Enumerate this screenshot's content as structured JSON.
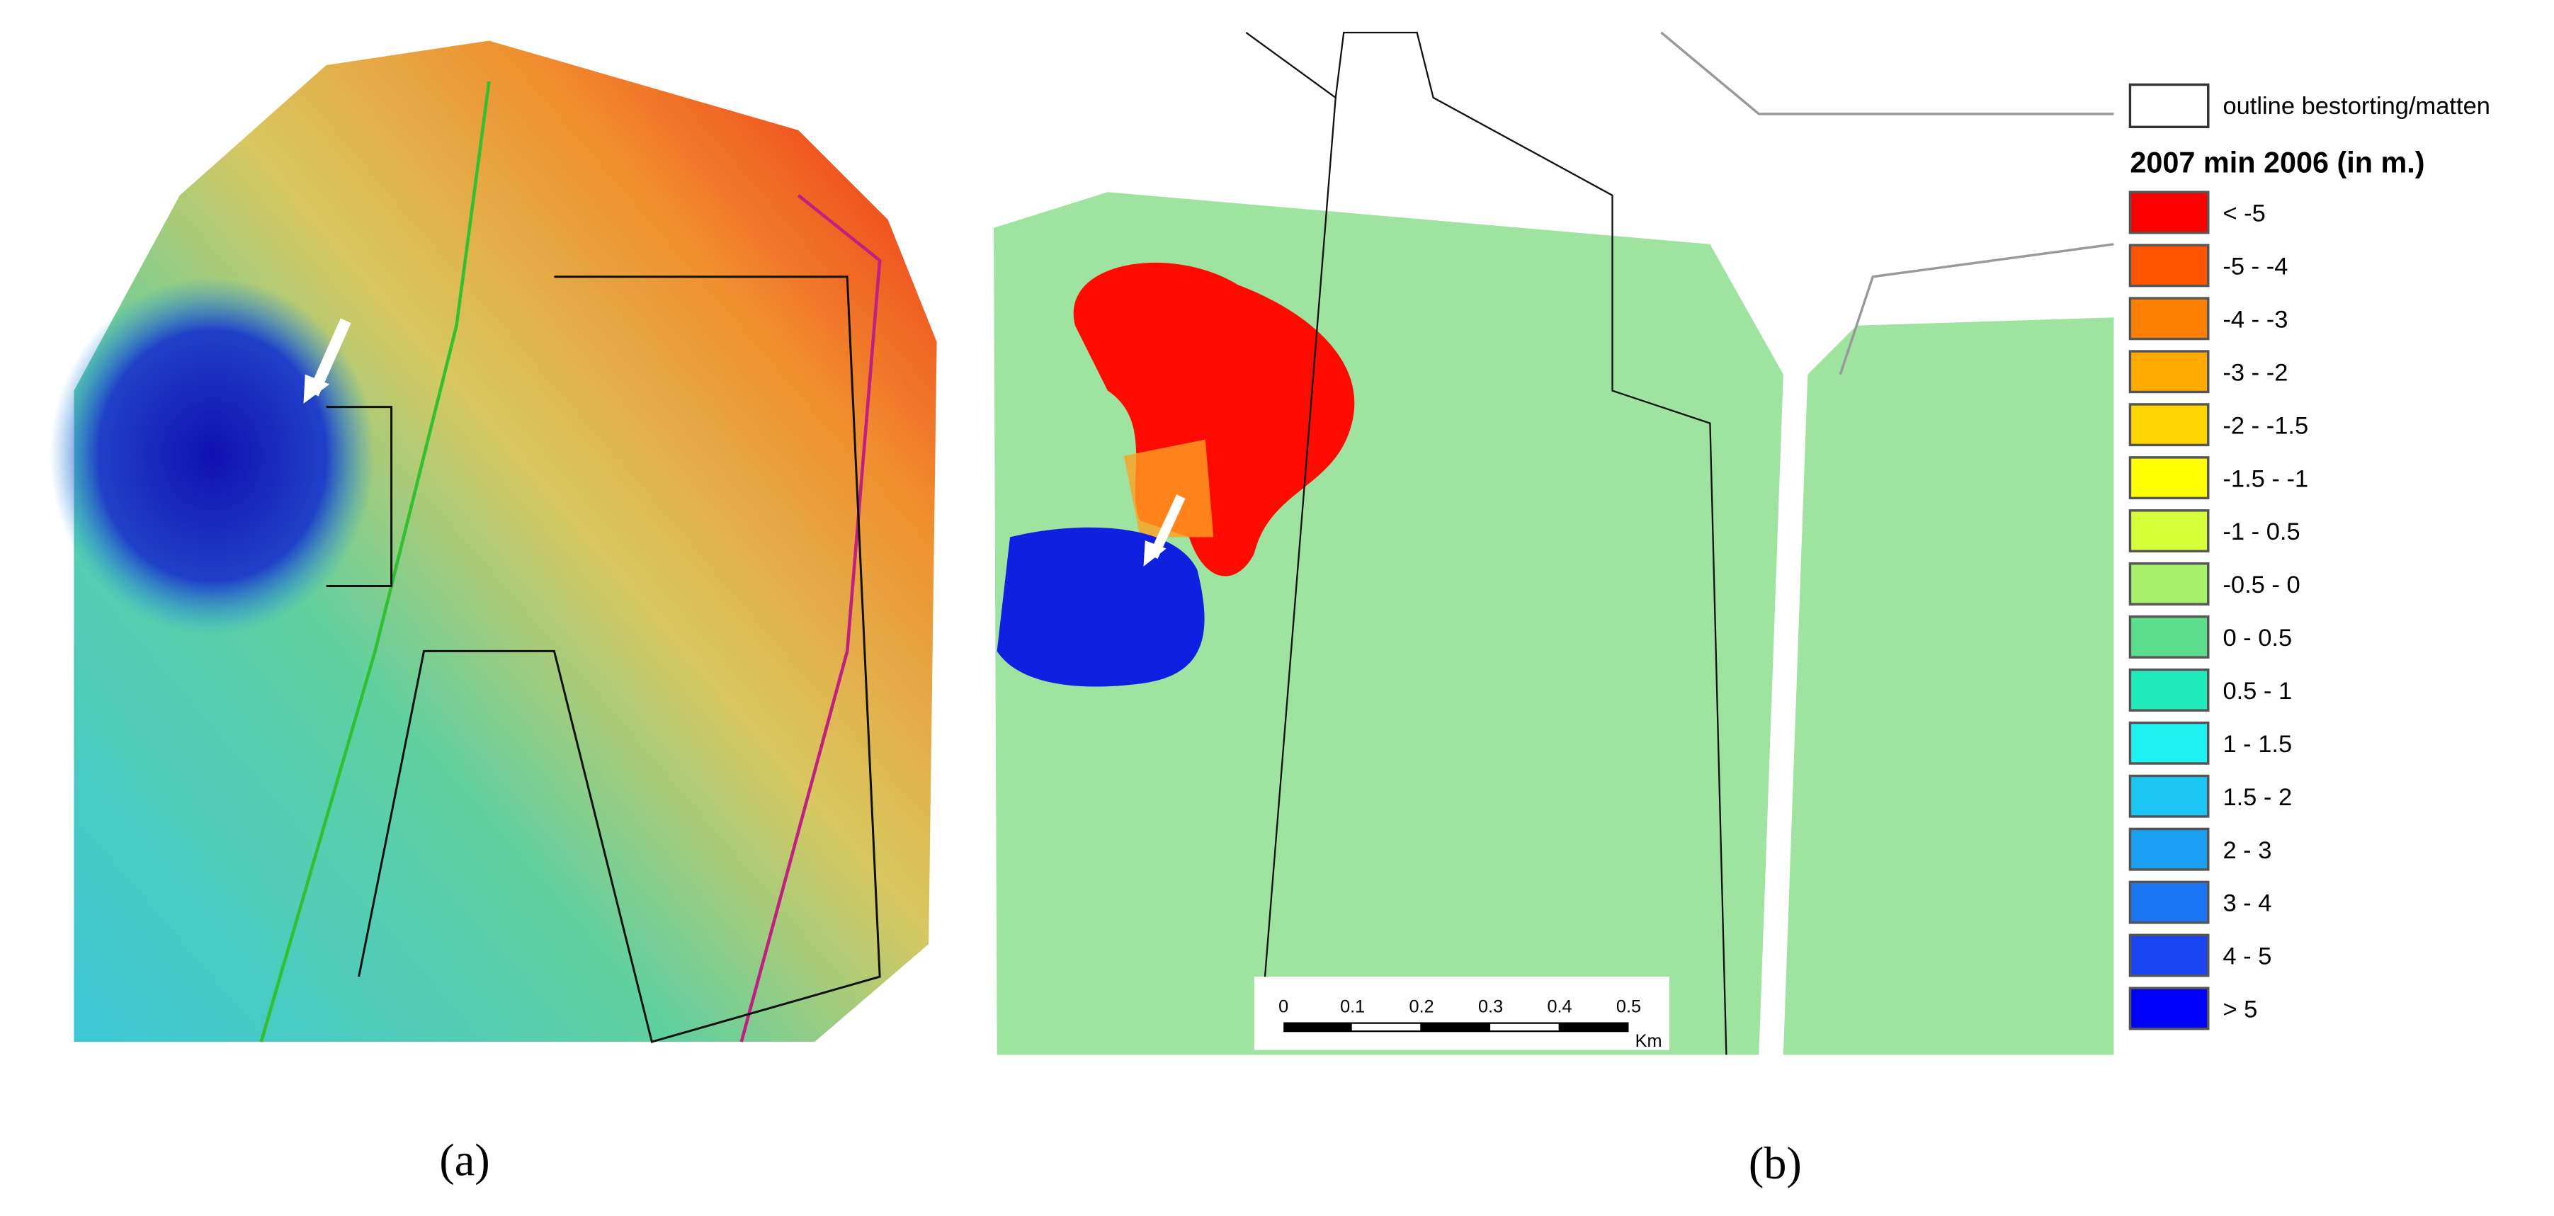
{
  "panel_a": {
    "label": "(a)"
  },
  "panel_b": {
    "label": "(b)",
    "legend": {
      "outline_label": "outline bestorting/matten",
      "title": "2007 min 2006 (in m.)",
      "classes": [
        {
          "label": "< -5",
          "color": "#ff0000"
        },
        {
          "label": "-5 - -4",
          "color": "#ff5500"
        },
        {
          "label": "-4 - -3",
          "color": "#ff8000"
        },
        {
          "label": "-3 - -2",
          "color": "#ffaa00"
        },
        {
          "label": "-2 - -1.5",
          "color": "#ffd500"
        },
        {
          "label": "-1.5 - -1",
          "color": "#ffff00"
        },
        {
          "label": "-1 - 0.5",
          "color": "#d5ff38"
        },
        {
          "label": "-0.5 - 0",
          "color": "#a6f06a"
        },
        {
          "label": "0 - 0.5",
          "color": "#5cde8c"
        },
        {
          "label": "0.5 - 1",
          "color": "#20ebbb"
        },
        {
          "label": "1 - 1.5",
          "color": "#20f2f2"
        },
        {
          "label": "1.5 - 2",
          "color": "#1cc6f2"
        },
        {
          "label": "2 - 3",
          "color": "#1a9ff2"
        },
        {
          "label": "3 - 4",
          "color": "#1a76f2"
        },
        {
          "label": "4 - 5",
          "color": "#1a45f0"
        },
        {
          "label": "> 5",
          "color": "#0000ff"
        }
      ]
    },
    "scale_bar": {
      "ticks": [
        "0",
        "0.1",
        "0.2",
        "0.3",
        "0.4",
        "0.5"
      ],
      "unit": "Km"
    }
  }
}
